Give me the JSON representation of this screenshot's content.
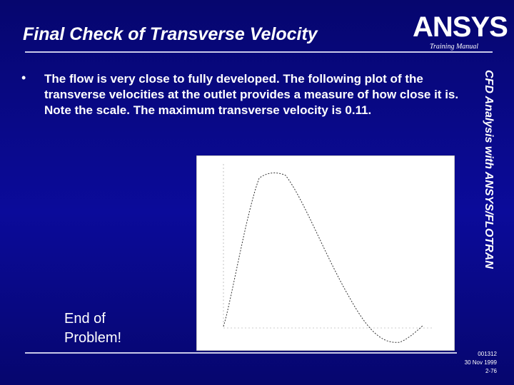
{
  "header": {
    "title": "Final Check of Transverse Velocity",
    "logo": "ANSYS",
    "subtitle": "Training Manual"
  },
  "bullet": "The flow is very close to fully developed.  The following plot of the transverse velocities at the outlet provides a measure of how close it is.  Note the scale.  The maximum transverse velocity is 0.11.",
  "side_text": "CFD Analysis with ANSYS/FLOTRAN",
  "closing": [
    "End of",
    "Problem!"
  ],
  "footer": [
    "001312",
    "30 Nov 1999",
    "2-76"
  ]
}
